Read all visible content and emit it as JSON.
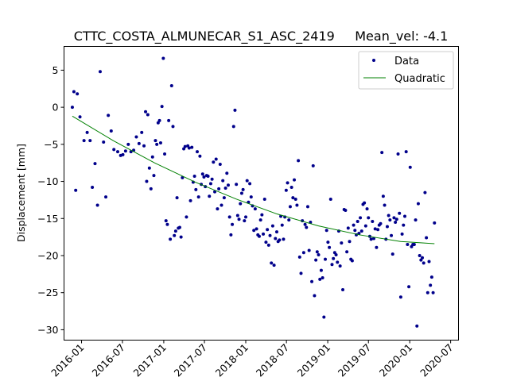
{
  "chart_data": {
    "type": "scatter",
    "title": "CTTC_COSTA_ALMUNECAR_S1_ASC_2419     Mean_vel: -4.1",
    "xlabel": "",
    "ylabel": "Displacement [mm]",
    "x_axis_type": "date",
    "xlim": [
      "2015-10-15",
      "2020-08-05"
    ],
    "ylim": [
      -31.4,
      8.2
    ],
    "x_ticks": [
      "2016-01",
      "2016-07",
      "2017-01",
      "2017-07",
      "2018-01",
      "2018-07",
      "2019-01",
      "2019-07",
      "2020-01",
      "2020-07"
    ],
    "y_ticks": [
      5,
      0,
      -5,
      -10,
      -15,
      -20,
      -25,
      -30
    ],
    "grid": false,
    "legend_position": "top-right",
    "colors": {
      "data": "#00008b",
      "fit": "#008000"
    },
    "series": [
      {
        "name": "Data",
        "kind": "scatter",
        "points": [
          [
            "2015-11-21",
            0.0
          ],
          [
            "2015-11-28",
            2.1
          ],
          [
            "2015-12-06",
            -11.2
          ],
          [
            "2015-12-13",
            1.8
          ],
          [
            "2015-12-25",
            -1.3
          ],
          [
            "2016-01-12",
            -4.5
          ],
          [
            "2016-01-26",
            -3.4
          ],
          [
            "2016-02-08",
            -4.5
          ],
          [
            "2016-02-18",
            -10.8
          ],
          [
            "2016-03-01",
            -7.6
          ],
          [
            "2016-03-12",
            -13.2
          ],
          [
            "2016-03-24",
            4.8
          ],
          [
            "2016-04-08",
            -4.7
          ],
          [
            "2016-04-18",
            -12.1
          ],
          [
            "2016-04-29",
            -1.1
          ],
          [
            "2016-05-12",
            -3.2
          ],
          [
            "2016-05-24",
            -5.7
          ],
          [
            "2016-06-10",
            -6.0
          ],
          [
            "2016-06-23",
            -6.5
          ],
          [
            "2016-07-03",
            -6.4
          ],
          [
            "2016-07-15",
            -5.9
          ],
          [
            "2016-07-27",
            -5.0
          ],
          [
            "2016-08-08",
            -6.0
          ],
          [
            "2016-08-20",
            -5.8
          ],
          [
            "2016-09-01",
            -4.0
          ],
          [
            "2016-09-13",
            -4.9
          ],
          [
            "2016-09-25",
            -3.4
          ],
          [
            "2016-10-05",
            -5.2
          ],
          [
            "2016-10-12",
            -0.6
          ],
          [
            "2016-10-17",
            -10.0
          ],
          [
            "2016-10-22",
            -1.0
          ],
          [
            "2016-10-29",
            -8.2
          ],
          [
            "2016-11-05",
            -11.0
          ],
          [
            "2016-11-12",
            -6.7
          ],
          [
            "2016-11-18",
            -9.2
          ],
          [
            "2016-11-25",
            -4.5
          ],
          [
            "2016-12-01",
            -5.0
          ],
          [
            "2016-12-07",
            -2.1
          ],
          [
            "2016-12-13",
            -1.8
          ],
          [
            "2016-12-18",
            -4.8
          ],
          [
            "2016-12-24",
            0.1
          ],
          [
            "2016-12-30",
            6.6
          ],
          [
            "2017-01-05",
            -6.3
          ],
          [
            "2017-01-11",
            -15.3
          ],
          [
            "2017-01-17",
            -15.8
          ],
          [
            "2017-01-23",
            -1.8
          ],
          [
            "2017-01-30",
            -17.8
          ],
          [
            "2017-02-05",
            2.9
          ],
          [
            "2017-02-11",
            -2.6
          ],
          [
            "2017-02-17",
            -17.3
          ],
          [
            "2017-02-23",
            -16.7
          ],
          [
            "2017-03-01",
            -12.2
          ],
          [
            "2017-03-07",
            -16.3
          ],
          [
            "2017-03-13",
            -16.2
          ],
          [
            "2017-03-19",
            -17.5
          ],
          [
            "2017-03-25",
            -9.5
          ],
          [
            "2017-03-31",
            -5.6
          ],
          [
            "2017-04-06",
            -5.3
          ],
          [
            "2017-04-12",
            -14.8
          ],
          [
            "2017-04-18",
            -5.2
          ],
          [
            "2017-04-24",
            -5.5
          ],
          [
            "2017-04-30",
            -12.6
          ],
          [
            "2017-05-06",
            -5.4
          ],
          [
            "2017-05-12",
            -10.1
          ],
          [
            "2017-05-18",
            -9.3
          ],
          [
            "2017-05-24",
            -11.1
          ],
          [
            "2017-05-30",
            -6.0
          ],
          [
            "2017-06-05",
            -12.1
          ],
          [
            "2017-06-11",
            -6.6
          ],
          [
            "2017-06-17",
            -10.4
          ],
          [
            "2017-06-23",
            -9.0
          ],
          [
            "2017-06-29",
            -9.4
          ],
          [
            "2017-07-05",
            -10.7
          ],
          [
            "2017-07-11",
            -9.2
          ],
          [
            "2017-07-17",
            -9.3
          ],
          [
            "2017-07-23",
            -12.0
          ],
          [
            "2017-07-29",
            -10.3
          ],
          [
            "2017-08-04",
            -9.7
          ],
          [
            "2017-08-10",
            -7.4
          ],
          [
            "2017-08-16",
            -11.4
          ],
          [
            "2017-08-22",
            -7.0
          ],
          [
            "2017-08-28",
            -13.7
          ],
          [
            "2017-09-03",
            -11.0
          ],
          [
            "2017-09-09",
            -7.7
          ],
          [
            "2017-09-15",
            -13.2
          ],
          [
            "2017-09-21",
            -9.9
          ],
          [
            "2017-09-27",
            -12.2
          ],
          [
            "2017-10-03",
            -10.9
          ],
          [
            "2017-10-09",
            -8.9
          ],
          [
            "2017-10-15",
            -10.5
          ],
          [
            "2017-10-21",
            -14.8
          ],
          [
            "2017-10-27",
            -17.2
          ],
          [
            "2017-11-02",
            -15.8
          ],
          [
            "2017-11-08",
            -2.6
          ],
          [
            "2017-11-14",
            -0.4
          ],
          [
            "2017-11-20",
            -10.4
          ],
          [
            "2017-11-26",
            -14.6
          ],
          [
            "2017-12-02",
            -15.1
          ],
          [
            "2017-12-08",
            -13.0
          ],
          [
            "2017-12-14",
            -11.6
          ],
          [
            "2017-12-20",
            -11.1
          ],
          [
            "2017-12-26",
            -15.3
          ],
          [
            "2018-01-01",
            -14.8
          ],
          [
            "2018-01-07",
            -9.9
          ],
          [
            "2018-01-13",
            -12.8
          ],
          [
            "2018-01-19",
            -10.3
          ],
          [
            "2018-01-25",
            -12.1
          ],
          [
            "2018-01-31",
            -13.3
          ],
          [
            "2018-02-06",
            -16.6
          ],
          [
            "2018-02-12",
            -13.7
          ],
          [
            "2018-02-18",
            -16.4
          ],
          [
            "2018-02-24",
            -17.2
          ],
          [
            "2018-03-02",
            -17.4
          ],
          [
            "2018-03-08",
            -15.2
          ],
          [
            "2018-03-14",
            -14.5
          ],
          [
            "2018-03-20",
            -17.1
          ],
          [
            "2018-03-26",
            -12.4
          ],
          [
            "2018-04-01",
            -18.2
          ],
          [
            "2018-04-07",
            -16.5
          ],
          [
            "2018-04-13",
            -18.6
          ],
          [
            "2018-04-19",
            -17.3
          ],
          [
            "2018-04-25",
            -21.0
          ],
          [
            "2018-05-01",
            -16.0
          ],
          [
            "2018-05-07",
            -21.3
          ],
          [
            "2018-05-13",
            -17.7
          ],
          [
            "2018-05-19",
            -16.8
          ],
          [
            "2018-05-25",
            -18.1
          ],
          [
            "2018-05-31",
            -17.9
          ],
          [
            "2018-06-06",
            -14.7
          ],
          [
            "2018-06-12",
            -15.9
          ],
          [
            "2018-06-18",
            -17.8
          ],
          [
            "2018-06-24",
            -14.8
          ],
          [
            "2018-06-30",
            -11.2
          ],
          [
            "2018-07-06",
            -10.2
          ],
          [
            "2018-07-12",
            -15.2
          ],
          [
            "2018-07-18",
            -13.4
          ],
          [
            "2018-07-24",
            -10.8
          ],
          [
            "2018-07-30",
            -12.2
          ],
          [
            "2018-08-05",
            -9.8
          ],
          [
            "2018-08-11",
            -12.4
          ],
          [
            "2018-08-17",
            -13.2
          ],
          [
            "2018-08-23",
            -7.2
          ],
          [
            "2018-08-29",
            -20.2
          ],
          [
            "2018-09-04",
            -22.4
          ],
          [
            "2018-09-10",
            -15.3
          ],
          [
            "2018-09-16",
            -19.6
          ],
          [
            "2018-09-22",
            -15.8
          ],
          [
            "2018-09-28",
            -16.2
          ],
          [
            "2018-10-04",
            -13.4
          ],
          [
            "2018-10-10",
            -19.3
          ],
          [
            "2018-10-16",
            -15.5
          ],
          [
            "2018-10-22",
            -23.5
          ],
          [
            "2018-10-28",
            -7.9
          ],
          [
            "2018-11-03",
            -25.4
          ],
          [
            "2018-11-09",
            -20.6
          ],
          [
            "2018-11-15",
            -19.5
          ],
          [
            "2018-11-21",
            -19.9
          ],
          [
            "2018-11-27",
            -23.2
          ],
          [
            "2018-12-03",
            -22.0
          ],
          [
            "2018-12-09",
            -23.0
          ],
          [
            "2018-12-15",
            -28.3
          ],
          [
            "2018-12-21",
            -20.5
          ],
          [
            "2018-12-27",
            -16.6
          ],
          [
            "2019-01-02",
            -18.2
          ],
          [
            "2019-01-08",
            -18.9
          ],
          [
            "2019-01-14",
            -12.4
          ],
          [
            "2019-01-20",
            -21.2
          ],
          [
            "2019-01-26",
            -20.4
          ],
          [
            "2019-02-01",
            -19.6
          ],
          [
            "2019-02-07",
            -19.9
          ],
          [
            "2019-02-13",
            -20.9
          ],
          [
            "2019-02-19",
            -16.7
          ],
          [
            "2019-02-25",
            -21.4
          ],
          [
            "2019-03-03",
            -18.3
          ],
          [
            "2019-03-09",
            -24.6
          ],
          [
            "2019-03-15",
            -13.8
          ],
          [
            "2019-03-21",
            -13.9
          ],
          [
            "2019-03-27",
            -19.5
          ],
          [
            "2019-04-02",
            -16.3
          ],
          [
            "2019-04-08",
            -18.1
          ],
          [
            "2019-04-14",
            -20.5
          ],
          [
            "2019-04-20",
            -20.7
          ],
          [
            "2019-04-26",
            -15.9
          ],
          [
            "2019-05-02",
            -16.6
          ],
          [
            "2019-05-08",
            -17.2
          ],
          [
            "2019-05-14",
            -15.4
          ],
          [
            "2019-05-20",
            -17.0
          ],
          [
            "2019-05-26",
            -14.9
          ],
          [
            "2019-06-01",
            -16.7
          ],
          [
            "2019-06-07",
            -13.1
          ],
          [
            "2019-06-13",
            -12.9
          ],
          [
            "2019-06-19",
            -16.0
          ],
          [
            "2019-06-25",
            -13.7
          ],
          [
            "2019-07-01",
            -14.9
          ],
          [
            "2019-07-07",
            -17.4
          ],
          [
            "2019-07-13",
            -17.8
          ],
          [
            "2019-07-19",
            -15.4
          ],
          [
            "2019-07-25",
            -17.7
          ],
          [
            "2019-07-31",
            -16.4
          ],
          [
            "2019-08-06",
            -18.9
          ],
          [
            "2019-08-12",
            -16.5
          ],
          [
            "2019-08-18",
            -15.9
          ],
          [
            "2019-08-24",
            -15.7
          ],
          [
            "2019-08-30",
            -6.1
          ],
          [
            "2019-09-05",
            -12.0
          ],
          [
            "2019-09-11",
            -13.2
          ],
          [
            "2019-09-17",
            -17.8
          ],
          [
            "2019-09-23",
            -16.1
          ],
          [
            "2019-09-29",
            -14.6
          ],
          [
            "2019-10-05",
            -15.2
          ],
          [
            "2019-10-11",
            -17.3
          ],
          [
            "2019-10-17",
            -19.8
          ],
          [
            "2019-10-23",
            -14.9
          ],
          [
            "2019-10-29",
            -15.5
          ],
          [
            "2019-11-04",
            -15.1
          ],
          [
            "2019-11-10",
            -6.3
          ],
          [
            "2019-11-16",
            -14.3
          ],
          [
            "2019-11-22",
            -25.6
          ],
          [
            "2019-11-28",
            -17.1
          ],
          [
            "2019-12-04",
            -15.9
          ],
          [
            "2019-12-10",
            -14.7
          ],
          [
            "2019-12-16",
            -6.0
          ],
          [
            "2019-12-22",
            -18.5
          ],
          [
            "2019-12-28",
            -24.2
          ],
          [
            "2020-01-03",
            -8.1
          ],
          [
            "2020-01-09",
            -18.8
          ],
          [
            "2020-01-15",
            -18.5
          ],
          [
            "2020-01-21",
            -18.5
          ],
          [
            "2020-01-27",
            -15.2
          ],
          [
            "2020-02-02",
            -29.5
          ],
          [
            "2020-02-08",
            -13.0
          ],
          [
            "2020-02-14",
            -20.0
          ],
          [
            "2020-02-20",
            -20.6
          ],
          [
            "2020-02-26",
            -20.3
          ],
          [
            "2020-03-03",
            -21.0
          ],
          [
            "2020-03-09",
            -11.5
          ],
          [
            "2020-03-15",
            -17.6
          ],
          [
            "2020-03-21",
            -25.0
          ],
          [
            "2020-03-27",
            -20.8
          ],
          [
            "2020-04-02",
            -24.0
          ],
          [
            "2020-04-08",
            -22.9
          ],
          [
            "2020-04-14",
            -25.0
          ],
          [
            "2020-04-20",
            -15.6
          ]
        ]
      },
      {
        "name": "Quadratic",
        "kind": "line",
        "points": [
          [
            "2015-11-21",
            -1.2
          ],
          [
            "2016-05-21",
            -4.5
          ],
          [
            "2016-11-21",
            -7.5
          ],
          [
            "2017-05-21",
            -10.1
          ],
          [
            "2017-11-21",
            -12.4
          ],
          [
            "2018-05-21",
            -14.4
          ],
          [
            "2018-11-21",
            -16.0
          ],
          [
            "2019-05-21",
            -17.2
          ],
          [
            "2019-11-21",
            -18.1
          ],
          [
            "2020-04-20",
            -18.4
          ]
        ]
      }
    ]
  }
}
